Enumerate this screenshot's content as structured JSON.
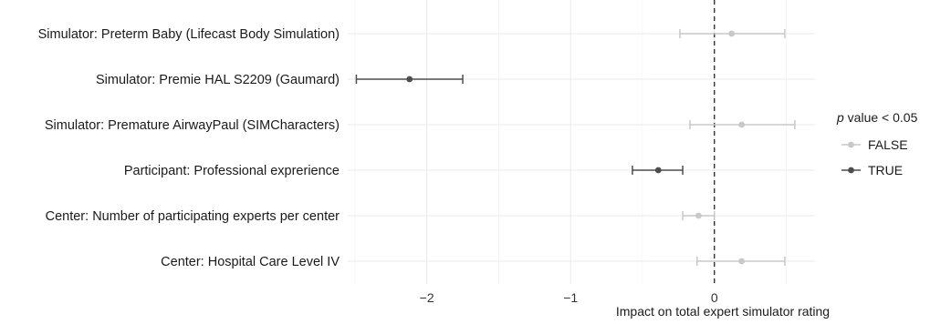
{
  "chart_data": {
    "type": "forest",
    "xlabel": "Impact on total expert simulator rating",
    "xlim": [
      -2.55,
      0.7
    ],
    "xticks": [
      -2,
      -1,
      0
    ],
    "xtick_labels": [
      "−2",
      "−1",
      "0"
    ],
    "reference_line": 0,
    "grid": true,
    "legend": {
      "title_italic": "p",
      "title_rest": " value < 0.05",
      "placement": "right",
      "entries": [
        {
          "label": "FALSE",
          "color": "#c8c8c8"
        },
        {
          "label": "TRUE",
          "color": "#4d4d4d"
        }
      ]
    },
    "rows": [
      {
        "label": "Simulator: Preterm Baby (Lifecast Body Simulation)",
        "estimate": 0.12,
        "lower": -0.24,
        "upper": 0.49,
        "significant": false
      },
      {
        "label": "Simulator: Premie HAL S2209 (Gaumard)",
        "estimate": -2.12,
        "lower": -2.49,
        "upper": -1.75,
        "significant": true
      },
      {
        "label": "Simulator: Premature AirwayPaul (SIMCharacters)",
        "estimate": 0.19,
        "lower": -0.17,
        "upper": 0.56,
        "significant": false
      },
      {
        "label": "Participant: Professional exprerience",
        "estimate": -0.39,
        "lower": -0.57,
        "upper": -0.22,
        "significant": true
      },
      {
        "label": "Center: Number of participating experts per center",
        "estimate": -0.11,
        "lower": -0.22,
        "upper": 0.0,
        "significant": false
      },
      {
        "label": "Center: Hospital Care Level IV",
        "estimate": 0.19,
        "lower": -0.12,
        "upper": 0.49,
        "significant": false
      }
    ]
  }
}
